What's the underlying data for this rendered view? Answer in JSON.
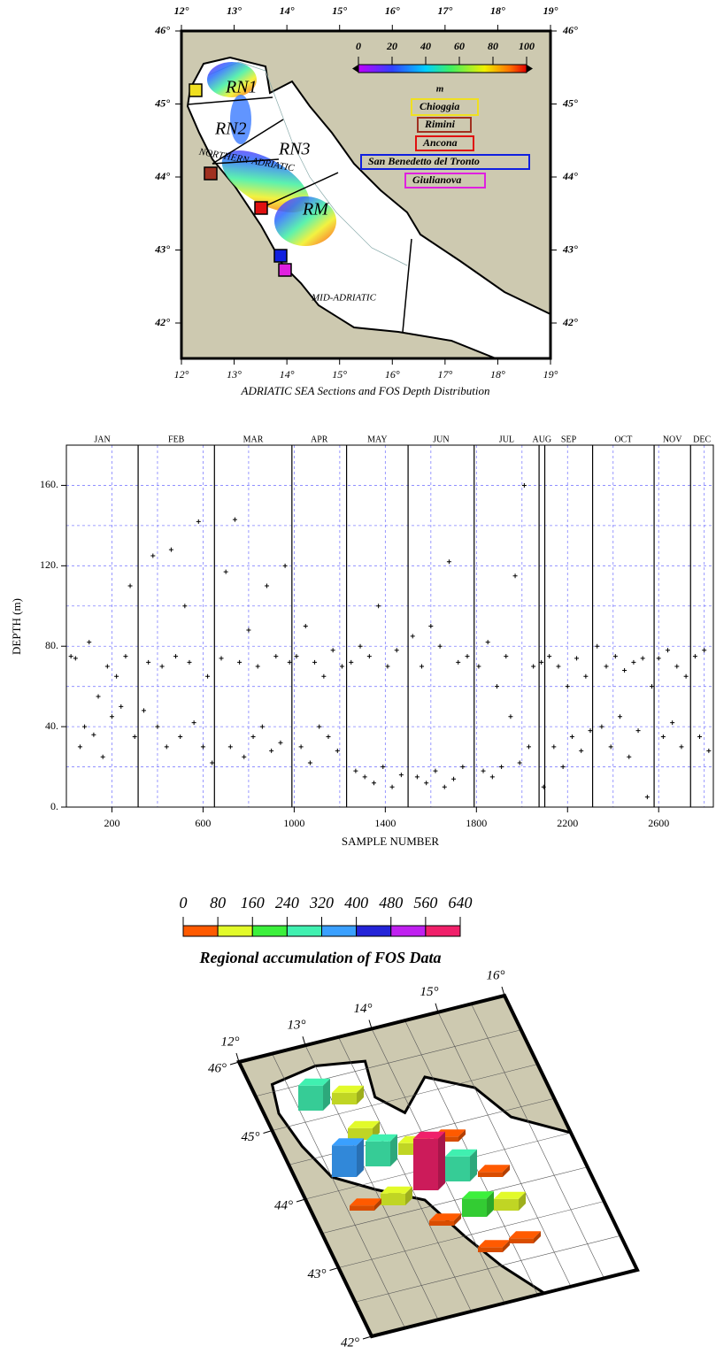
{
  "depth_map": {
    "lon_ticks": [
      {
        "value": 12,
        "label": "12°"
      },
      {
        "value": 13,
        "label": "13°"
      },
      {
        "value": 14,
        "label": "14°"
      },
      {
        "value": 15,
        "label": "15°"
      },
      {
        "value": 16,
        "label": "16°"
      },
      {
        "value": 17,
        "label": "17°"
      },
      {
        "value": 18,
        "label": "18°"
      },
      {
        "value": 19,
        "label": "19°"
      }
    ],
    "lat_ticks": [
      {
        "value": 46,
        "label": "46°"
      },
      {
        "value": 45,
        "label": "45°"
      },
      {
        "value": 44,
        "label": "44°"
      },
      {
        "value": 43,
        "label": "43°"
      },
      {
        "value": 42,
        "label": "42°"
      }
    ],
    "colorbar": {
      "ticks": [
        0,
        20,
        40,
        60,
        80,
        100
      ],
      "unit": "m"
    },
    "regions": [
      "RN1",
      "RN2",
      "RN3",
      "RM"
    ],
    "areas": [
      "NORTHERN-ADRIATIC",
      "MID-ADRIATIC"
    ],
    "ports": [
      "Chioggia",
      "Rimini",
      "Ancona",
      "San Benedetto del Tronto",
      "Giulianova"
    ],
    "caption": "ADRIATIC SEA Sections and FOS Depth Distribution"
  },
  "chart_data": {
    "type": "scatter",
    "xlabel": "SAMPLE NUMBER",
    "ylabel": "DEPTH (m)",
    "xlim": [
      0,
      2840
    ],
    "ylim": [
      0,
      180
    ],
    "xticks": [
      200,
      600,
      1000,
      1400,
      1800,
      2200,
      2600
    ],
    "yticks": [
      {
        "value": 0,
        "label": "0."
      },
      {
        "value": 40,
        "label": "40."
      },
      {
        "value": 80,
        "label": "80."
      },
      {
        "value": 120,
        "label": "120."
      },
      {
        "value": 160,
        "label": "160."
      }
    ],
    "xgrid": [
      200,
      400,
      600,
      800,
      1000,
      1200,
      1400,
      1600,
      1800,
      2000,
      2200,
      2400,
      2600,
      2800
    ],
    "ygrid": [
      20,
      40,
      60,
      80,
      100,
      120,
      140,
      160
    ],
    "grid": true,
    "months": [
      "JAN",
      "FEB",
      "MAR",
      "APR",
      "MAY",
      "JUN",
      "JUL",
      "AUG",
      "SEP",
      "OCT",
      "NOV",
      "DEC"
    ],
    "month_lines": [
      315,
      650,
      990,
      1230,
      1500,
      1790,
      2075,
      2100,
      2310,
      2580,
      2740
    ],
    "color": "#000000",
    "x": [
      20,
      40,
      60,
      80,
      100,
      120,
      140,
      160,
      180,
      200,
      220,
      240,
      260,
      280,
      300,
      340,
      360,
      380,
      400,
      420,
      440,
      460,
      480,
      500,
      520,
      540,
      560,
      580,
      600,
      620,
      640,
      680,
      700,
      720,
      740,
      760,
      780,
      800,
      820,
      840,
      860,
      880,
      900,
      920,
      940,
      960,
      980,
      1010,
      1030,
      1050,
      1070,
      1090,
      1110,
      1130,
      1150,
      1170,
      1190,
      1210,
      1250,
      1270,
      1290,
      1310,
      1330,
      1350,
      1370,
      1390,
      1410,
      1430,
      1450,
      1470,
      1520,
      1540,
      1560,
      1580,
      1600,
      1620,
      1640,
      1660,
      1680,
      1700,
      1720,
      1740,
      1760,
      1810,
      1830,
      1850,
      1870,
      1890,
      1910,
      1930,
      1950,
      1970,
      1990,
      2010,
      2030,
      2050,
      2085,
      2095,
      2120,
      2140,
      2160,
      2180,
      2200,
      2220,
      2240,
      2260,
      2280,
      2300,
      2330,
      2350,
      2370,
      2390,
      2410,
      2430,
      2450,
      2470,
      2490,
      2510,
      2530,
      2550,
      2570,
      2600,
      2620,
      2640,
      2660,
      2680,
      2700,
      2720,
      2760,
      2780,
      2800,
      2820
    ],
    "y": [
      75,
      74,
      30,
      40,
      82,
      36,
      55,
      25,
      70,
      45,
      65,
      50,
      75,
      110,
      35,
      48,
      72,
      125,
      40,
      70,
      30,
      128,
      75,
      35,
      100,
      72,
      42,
      142,
      30,
      65,
      22,
      74,
      117,
      30,
      143,
      72,
      25,
      88,
      35,
      70,
      40,
      110,
      28,
      75,
      32,
      120,
      72,
      75,
      30,
      90,
      22,
      72,
      40,
      65,
      35,
      78,
      28,
      70,
      72,
      18,
      80,
      15,
      75,
      12,
      100,
      20,
      70,
      10,
      78,
      16,
      85,
      15,
      70,
      12,
      90,
      18,
      80,
      10,
      122,
      14,
      72,
      20,
      75,
      70,
      18,
      82,
      15,
      60,
      20,
      75,
      45,
      115,
      22,
      160,
      30,
      70,
      72,
      10,
      75,
      30,
      70,
      20,
      60,
      35,
      74,
      28,
      65,
      38,
      80,
      40,
      70,
      30,
      75,
      45,
      68,
      25,
      72,
      38,
      74,
      5,
      60,
      74,
      35,
      78,
      42,
      70,
      30,
      65,
      75,
      35,
      78,
      28
    ]
  },
  "accumulation_map": {
    "title": "Regional accumulation of FOS Data",
    "colorbar": {
      "ticks": [
        0,
        80,
        160,
        240,
        320,
        400,
        480,
        560,
        640
      ],
      "colors": [
        "#ff5a00",
        "#e2fa2a",
        "#3cf03c",
        "#40f0b0",
        "#3aa0ff",
        "#2424d8",
        "#c020f0",
        "#f0206a"
      ]
    },
    "lon_ticks": [
      {
        "value": 12,
        "label": "12°"
      },
      {
        "value": 13,
        "label": "13°"
      },
      {
        "value": 14,
        "label": "14°"
      },
      {
        "value": 15,
        "label": "15°"
      },
      {
        "value": 16,
        "label": "16°"
      }
    ],
    "lat_ticks": [
      {
        "value": 46,
        "label": "46°"
      },
      {
        "value": 45,
        "label": "45°"
      },
      {
        "value": 44,
        "label": "44°"
      },
      {
        "value": 43,
        "label": "43°"
      },
      {
        "value": 42,
        "label": "42°"
      }
    ],
    "values": [
      280,
      120,
      120,
      40,
      120,
      280,
      40,
      280,
      360,
      600,
      120,
      120,
      40,
      200,
      40,
      40,
      40
    ]
  }
}
